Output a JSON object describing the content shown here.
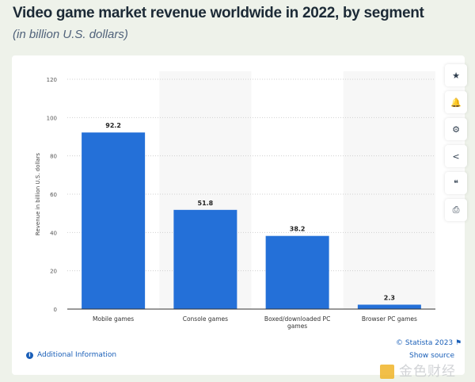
{
  "header": {
    "title": "Video game market revenue worldwide in 2022, by segment",
    "subtitle": "(in billion U.S. dollars)"
  },
  "chart_data": {
    "type": "bar",
    "categories": [
      "Mobile games",
      "Console games",
      "Boxed/downloaded PC games",
      "Browser PC games"
    ],
    "values": [
      92.2,
      51.8,
      38.2,
      2.3
    ],
    "data_labels": [
      "92.2",
      "51.8",
      "38.2",
      "2.3"
    ],
    "xlabel": "",
    "ylabel": "Revenue in billion U.S. dollars",
    "ylim": [
      0,
      120
    ],
    "yticks": [
      0,
      20,
      40,
      60,
      80,
      100,
      120
    ],
    "grid": true,
    "bar_color": "#2470d8"
  },
  "sidebar": {
    "icons": [
      "star-icon",
      "bell-icon",
      "gear-icon",
      "share-icon",
      "quote-icon",
      "print-icon"
    ],
    "glyphs": [
      "★",
      "🔔",
      "⚙",
      "<",
      "❝",
      "⎙"
    ]
  },
  "footer": {
    "additional_info": "Additional Information",
    "copyright": "© Statista 2023",
    "show_source": "Show source",
    "watermark": "金色财经"
  }
}
